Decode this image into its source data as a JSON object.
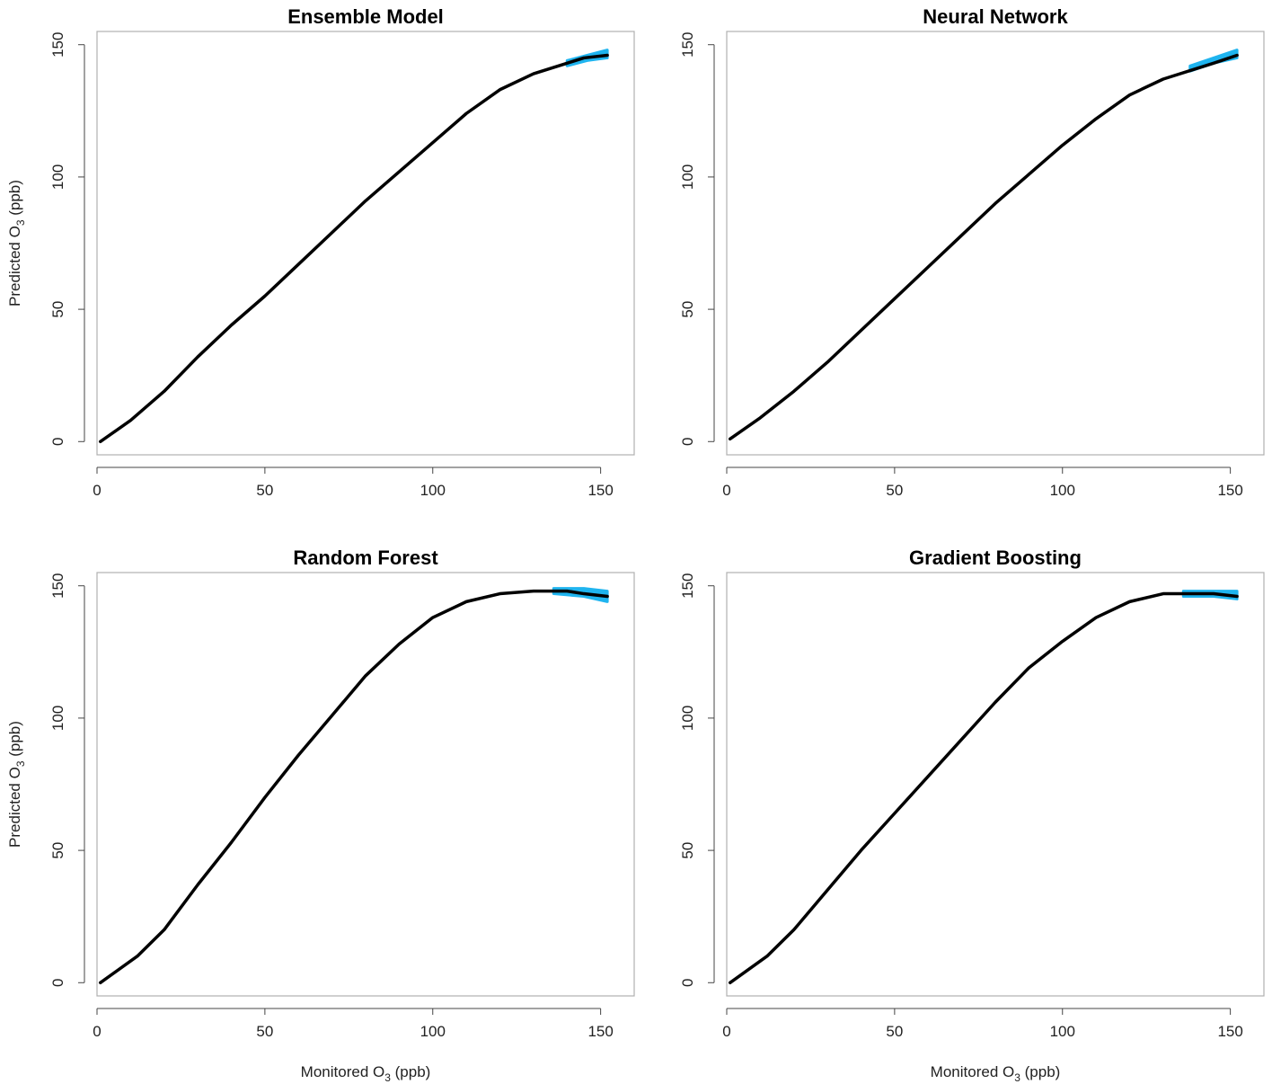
{
  "colors": {
    "curve": "#000000",
    "ci_band": "#1fb4ef",
    "frame": "#b0b0b0"
  },
  "chart_data": [
    {
      "type": "line",
      "title": "Ensemble Model",
      "xlabel": "",
      "ylabel": "Predicted O3 (ppb)",
      "xlim": [
        0,
        160
      ],
      "ylim": [
        -5,
        155
      ],
      "xticks": [
        "0",
        "50",
        "100",
        "150"
      ],
      "yticks": [
        "0",
        "50",
        "100",
        "150"
      ],
      "x": [
        1,
        10,
        20,
        30,
        40,
        50,
        60,
        70,
        80,
        90,
        100,
        110,
        120,
        130,
        140,
        145,
        152
      ],
      "y": [
        0,
        8,
        19,
        32,
        44,
        55,
        67,
        79,
        91,
        102,
        113,
        124,
        133,
        139,
        143,
        145,
        146
      ],
      "band": {
        "x_start": 140,
        "lower": [
          142,
          144,
          145
        ],
        "upper": [
          144,
          146,
          148
        ],
        "x": [
          140,
          146,
          152
        ]
      }
    },
    {
      "type": "line",
      "title": "Neural Network",
      "xlabel": "",
      "ylabel": "",
      "xlim": [
        0,
        160
      ],
      "ylim": [
        -5,
        155
      ],
      "xticks": [
        "0",
        "50",
        "100",
        "150"
      ],
      "yticks": [
        "0",
        "50",
        "100",
        "150"
      ],
      "x": [
        1,
        10,
        20,
        30,
        40,
        50,
        60,
        70,
        80,
        90,
        100,
        110,
        120,
        130,
        140,
        145,
        152
      ],
      "y": [
        1,
        9,
        19,
        30,
        42,
        54,
        66,
        78,
        90,
        101,
        112,
        122,
        131,
        137,
        141,
        143,
        146
      ],
      "band": {
        "lower": [
          140,
          143,
          145
        ],
        "upper": [
          142,
          145,
          148
        ],
        "x": [
          138,
          145,
          152
        ]
      }
    },
    {
      "type": "line",
      "title": "Random Forest",
      "xlabel": "Monitored O3 (ppb)",
      "ylabel": "Predicted O3 (ppb)",
      "xlim": [
        0,
        160
      ],
      "ylim": [
        -5,
        155
      ],
      "xticks": [
        "0",
        "50",
        "100",
        "150"
      ],
      "yticks": [
        "0",
        "50",
        "100",
        "150"
      ],
      "x": [
        1,
        12,
        20,
        30,
        40,
        50,
        60,
        70,
        80,
        90,
        100,
        110,
        120,
        130,
        135,
        140,
        145,
        152
      ],
      "y": [
        0,
        10,
        20,
        37,
        53,
        70,
        86,
        101,
        116,
        128,
        138,
        144,
        147,
        148,
        148,
        148,
        147,
        146
      ],
      "band": {
        "lower": [
          147,
          146,
          144
        ],
        "upper": [
          149,
          149,
          148
        ],
        "x": [
          136,
          145,
          152
        ]
      }
    },
    {
      "type": "line",
      "title": "Gradient Boosting",
      "xlabel": "Monitored O3 (ppb)",
      "ylabel": "",
      "xlim": [
        0,
        160
      ],
      "ylim": [
        -5,
        155
      ],
      "xticks": [
        "0",
        "50",
        "100",
        "150"
      ],
      "yticks": [
        "0",
        "50",
        "100",
        "150"
      ],
      "x": [
        1,
        12,
        20,
        30,
        40,
        50,
        60,
        70,
        80,
        90,
        100,
        110,
        120,
        130,
        135,
        140,
        145,
        152
      ],
      "y": [
        0,
        10,
        20,
        35,
        50,
        64,
        78,
        92,
        106,
        119,
        129,
        138,
        144,
        147,
        147,
        147,
        147,
        146
      ],
      "band": {
        "lower": [
          146,
          146,
          145
        ],
        "upper": [
          148,
          148,
          148
        ],
        "x": [
          136,
          145,
          152
        ]
      }
    }
  ]
}
